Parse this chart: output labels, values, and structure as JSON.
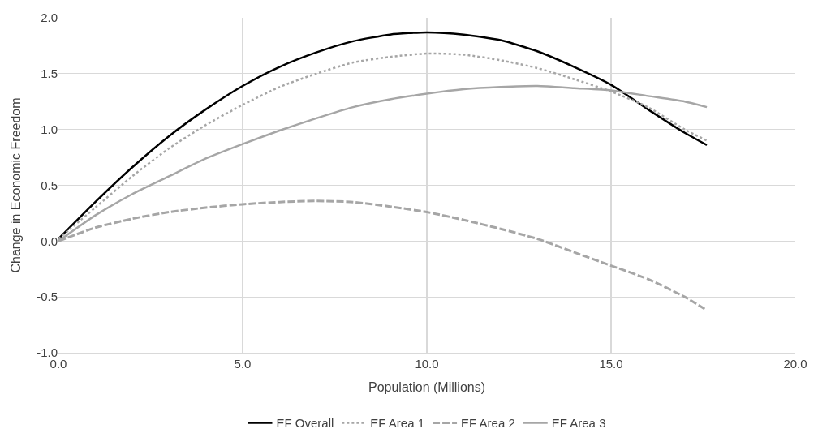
{
  "chart_data": {
    "type": "line",
    "xlabel": "Population (Millions)",
    "ylabel": "Change in Economic Freedom",
    "x": [
      0,
      1,
      2,
      3,
      4,
      5,
      6,
      7,
      8,
      9,
      10,
      11,
      12,
      13,
      14,
      15,
      16,
      17,
      17.6
    ],
    "series": [
      {
        "name": "EF Overall",
        "color": "#000000",
        "line_style": "solid",
        "values": [
          0.02,
          0.35,
          0.66,
          0.94,
          1.18,
          1.39,
          1.56,
          1.69,
          1.79,
          1.85,
          1.87,
          1.85,
          1.8,
          1.7,
          1.56,
          1.4,
          1.18,
          0.97,
          0.86
        ]
      },
      {
        "name": "EF Area 1",
        "color": "#a6a6a6",
        "line_style": "dotted",
        "values": [
          0.02,
          0.3,
          0.58,
          0.83,
          1.04,
          1.22,
          1.38,
          1.5,
          1.6,
          1.65,
          1.68,
          1.67,
          1.62,
          1.55,
          1.45,
          1.34,
          1.2,
          1.0,
          0.9
        ]
      },
      {
        "name": "EF Area 2",
        "color": "#a6a6a6",
        "line_style": "dashed",
        "values": [
          0.0,
          0.12,
          0.2,
          0.26,
          0.3,
          0.33,
          0.35,
          0.36,
          0.35,
          0.31,
          0.26,
          0.19,
          0.11,
          0.02,
          -0.1,
          -0.22,
          -0.34,
          -0.5,
          -0.62
        ]
      },
      {
        "name": "EF Area 3",
        "color": "#a6a6a6",
        "line_style": "solid",
        "values": [
          0.0,
          0.23,
          0.42,
          0.58,
          0.74,
          0.87,
          0.99,
          1.1,
          1.2,
          1.27,
          1.32,
          1.36,
          1.38,
          1.39,
          1.37,
          1.35,
          1.3,
          1.25,
          1.2
        ]
      }
    ],
    "xlim": [
      0,
      20
    ],
    "xticks": [
      {
        "value": 0,
        "label": "0.0"
      },
      {
        "value": 5,
        "label": "5.0"
      },
      {
        "value": 10,
        "label": "10.0"
      },
      {
        "value": 15,
        "label": "15.0"
      },
      {
        "value": 20,
        "label": "20.0"
      }
    ],
    "ylim": [
      -1,
      2
    ],
    "yticks": [
      {
        "value": -1,
        "label": "-1.0"
      },
      {
        "value": -0.5,
        "label": "-0.5"
      },
      {
        "value": 0,
        "label": "0.0"
      },
      {
        "value": 0.5,
        "label": "0.5"
      },
      {
        "value": 1,
        "label": "1.0"
      },
      {
        "value": 1.5,
        "label": "1.5"
      },
      {
        "value": 2,
        "label": "2.0"
      }
    ],
    "grid": true,
    "legend": "bottom",
    "marker": "none"
  }
}
